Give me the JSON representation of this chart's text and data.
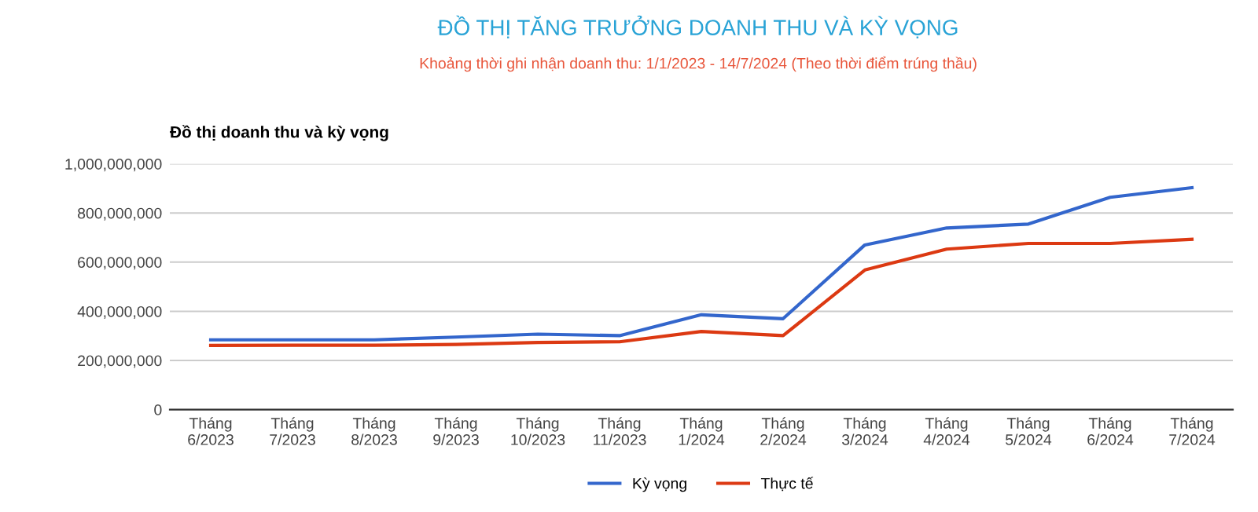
{
  "chart_data": {
    "type": "line",
    "title": "ĐỒ THỊ TĂNG TRƯỞNG DOANH THU VÀ KỲ VỌNG",
    "subtitle": "Khoảng thời ghi nhận doanh thu: 1/1/2023 - 14/7/2024 (Theo thời điểm trúng thầu)",
    "ylabel": "Đồ thị doanh thu và kỳ vọng",
    "categories": [
      "Tháng\n6/2023",
      "Tháng\n7/2023",
      "Tháng\n8/2023",
      "Tháng\n9/2023",
      "Tháng\n10/2023",
      "Tháng\n11/2023",
      "Tháng\n1/2024",
      "Tháng\n2/2024",
      "Tháng\n3/2024",
      "Tháng\n4/2024",
      "Tháng\n5/2024",
      "Tháng\n6/2024",
      "Tháng\n7/2024"
    ],
    "series": [
      {
        "name": "Kỳ vọng",
        "color": "#3366cc",
        "values": [
          284000000,
          284000000,
          284000000,
          295000000,
          307000000,
          301000000,
          386000000,
          370000000,
          670000000,
          739000000,
          755000000,
          864000000,
          903000000
        ]
      },
      {
        "name": "Thực tế",
        "color": "#dc3912",
        "values": [
          261000000,
          262000000,
          262000000,
          265000000,
          273000000,
          276000000,
          318000000,
          301000000,
          568000000,
          653000000,
          676000000,
          676000000,
          693000000
        ]
      }
    ],
    "ylim": [
      0,
      1000000000
    ],
    "yticks": [
      {
        "value": 0,
        "label": "0"
      },
      {
        "value": 200000000,
        "label": "200,000,000"
      },
      {
        "value": 400000000,
        "label": "400,000,000"
      },
      {
        "value": 600000000,
        "label": "600,000,000"
      },
      {
        "value": 800000000,
        "label": "800,000,000"
      },
      {
        "value": 1000000000,
        "label": "1,000,000,000"
      }
    ],
    "grid": "y",
    "legend": "bottom",
    "marker": "none",
    "line_style": "solid"
  }
}
